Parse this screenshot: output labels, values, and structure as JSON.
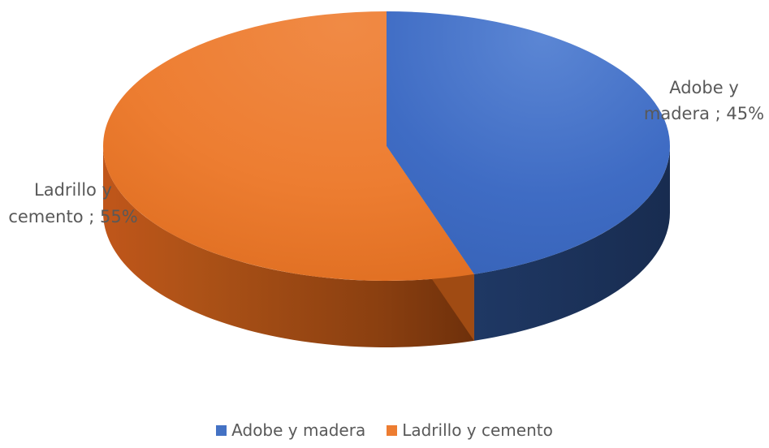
{
  "chart_data": {
    "type": "pie",
    "style": "3d",
    "categories": [
      "Adobe y madera",
      "Ladrillo y cemento"
    ],
    "values": [
      45,
      55
    ],
    "unit": "%",
    "data_labels": [
      "Adobe y madera ; 45%",
      "Ladrillo y cemento ; 55%"
    ],
    "colors": [
      "#4472c4",
      "#ed7d31"
    ],
    "legend_position": "bottom",
    "title": ""
  },
  "legend": {
    "items": [
      {
        "label": "Adobe y madera",
        "color": "#4472c4"
      },
      {
        "label": "Ladrillo y cemento",
        "color": "#ed7d31"
      }
    ]
  }
}
